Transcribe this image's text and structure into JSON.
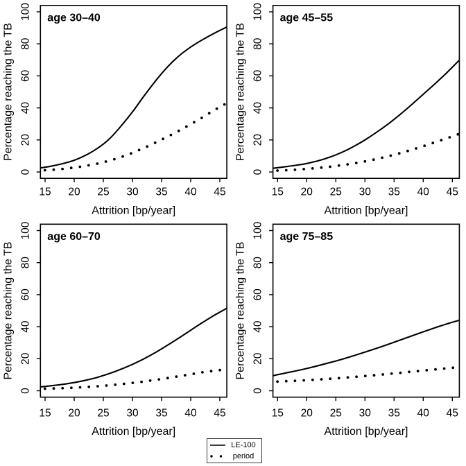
{
  "chart_data": {
    "type": "line",
    "xlabel": "Attrition [bp/year]",
    "ylabel": "Percentage reaching the TB",
    "x_ticks": [
      15,
      20,
      25,
      30,
      35,
      40,
      45
    ],
    "y_ticks": [
      0,
      20,
      40,
      60,
      80,
      100
    ],
    "xlim": [
      14.2,
      46.2
    ],
    "ylim": [
      -4,
      104
    ],
    "grid": "off",
    "x": [
      14.2,
      16,
      18,
      20,
      22,
      24,
      26,
      28,
      30,
      32,
      34,
      36,
      38,
      40,
      42,
      44,
      46.2
    ],
    "panels": [
      {
        "title": "age 30–40",
        "series": [
          {
            "name": "LE-100",
            "style": "solid",
            "values": [
              2.5,
              3.6,
              5.2,
              7.3,
              10.5,
              14.8,
              20.5,
              28.5,
              37.5,
              47.5,
              57,
              65.5,
              72.5,
              78,
              82.5,
              86.5,
              90.5
            ]
          },
          {
            "name": "period",
            "style": "dotted",
            "values": [
              0.9,
              1.3,
              1.9,
              2.7,
              3.8,
              5.2,
              7,
              9.2,
              11.9,
              15,
              18.4,
              22,
              25.8,
              29.8,
              34,
              38.5,
              43
            ]
          }
        ]
      },
      {
        "title": "age 45–55",
        "series": [
          {
            "name": "LE-100",
            "style": "solid",
            "values": [
              2.3,
              3.1,
              4.1,
              5.3,
              7,
              9.3,
              12.2,
              15.8,
              20,
              24.8,
              30,
              35.8,
              42,
              48.5,
              55,
              61.8,
              69.8
            ]
          },
          {
            "name": "period",
            "style": "dotted",
            "values": [
              0.8,
              1,
              1.4,
              1.9,
              2.5,
              3.3,
              4.2,
              5.3,
              6.6,
              8.1,
              9.8,
              11.7,
              13.8,
              16.1,
              18.5,
              21,
              23.8
            ]
          }
        ]
      },
      {
        "title": "age 60–70",
        "series": [
          {
            "name": "LE-100",
            "style": "solid",
            "values": [
              2.4,
              3.1,
              4,
              5.1,
              6.6,
              8.4,
              10.7,
              13.4,
              16.5,
              20,
              24,
              28.4,
              33,
              37.8,
              42.5,
              47,
              51.5
            ]
          },
          {
            "name": "period",
            "style": "dotted",
            "values": [
              1.2,
              1.4,
              1.6,
              1.9,
              2.3,
              2.8,
              3.4,
              4.1,
              4.9,
              5.8,
              6.8,
              7.9,
              9.1,
              10.3,
              11.5,
              12.5,
              13.4
            ]
          }
        ]
      },
      {
        "title": "age 75–85",
        "series": [
          {
            "name": "LE-100",
            "style": "solid",
            "values": [
              9.4,
              10.8,
              12.3,
              13.9,
              15.7,
              17.6,
              19.6,
              21.8,
              24.1,
              26.5,
              29,
              31.6,
              34.2,
              36.8,
              39.3,
              41.7,
              44
            ]
          },
          {
            "name": "period",
            "style": "dotted",
            "values": [
              5.6,
              5.9,
              6.2,
              6.6,
              7,
              7.5,
              8,
              8.6,
              9.2,
              9.8,
              10.5,
              11.2,
              11.9,
              12.6,
              13.3,
              14,
              14.7
            ]
          }
        ]
      }
    ],
    "legend": {
      "position": "bottom-center",
      "items": [
        {
          "label": "LE-100",
          "style": "solid"
        },
        {
          "label": "period",
          "style": "dotted"
        }
      ]
    },
    "colors": {
      "line": "#000000",
      "background": "#ffffff"
    }
  }
}
